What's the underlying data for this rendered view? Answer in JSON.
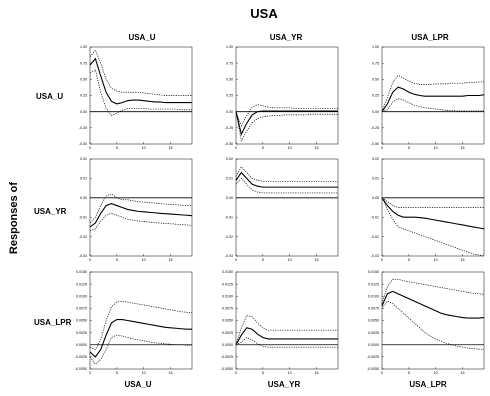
{
  "title": "USA",
  "y_axis_label": "Responses of",
  "col_titles": [
    "USA_U",
    "USA_YR",
    "USA_LPR"
  ],
  "row_labels": [
    "USA_U",
    "USA_YR",
    "USA_LPR"
  ],
  "bottom_labels": [
    "USA_U",
    "USA_YR",
    "USA_LPR"
  ],
  "chart_data": {
    "type": "line",
    "layout": "3x3 impulse-response grid",
    "x": [
      0,
      1,
      2,
      3,
      4,
      5,
      6,
      7,
      8,
      9,
      10,
      11,
      12,
      13,
      14,
      15,
      16,
      17,
      18,
      19
    ],
    "x_ticks": [
      0,
      5,
      10,
      15
    ],
    "rows": [
      {
        "ylim": [
          -0.5,
          1.0
        ],
        "y_ticks": [
          -0.5,
          -0.25,
          0.0,
          0.25,
          0.5,
          0.75,
          1.0
        ],
        "y_tick_labels": [
          "-0.50",
          "-0.25",
          "0.00",
          "0.25",
          "0.50",
          "0.75",
          "1.00"
        ],
        "cells": [
          {
            "response": [
              0.72,
              0.82,
              0.55,
              0.3,
              0.16,
              0.12,
              0.14,
              0.17,
              0.18,
              0.18,
              0.17,
              0.16,
              0.15,
              0.15,
              0.14,
              0.14,
              0.14,
              0.14,
              0.14,
              0.14
            ],
            "lower": [
              0.6,
              0.65,
              0.3,
              0.05,
              -0.06,
              -0.02,
              0.02,
              0.05,
              0.05,
              0.05,
              0.05,
              0.04,
              0.04,
              0.04,
              0.04,
              0.04,
              0.04,
              0.03,
              0.03,
              0.03
            ],
            "upper": [
              0.85,
              0.95,
              0.75,
              0.5,
              0.36,
              0.32,
              0.3,
              0.3,
              0.3,
              0.3,
              0.29,
              0.28,
              0.27,
              0.26,
              0.25,
              0.25,
              0.25,
              0.25,
              0.25,
              0.25
            ]
          },
          {
            "response": [
              0.0,
              -0.35,
              -0.18,
              -0.05,
              0.0,
              0.01,
              0.01,
              0.01,
              0.01,
              0.01,
              0.01,
              0.01,
              0.01,
              0.01,
              0.01,
              0.01,
              0.01,
              0.01,
              0.01,
              0.01
            ],
            "lower": [
              0.0,
              -0.45,
              -0.3,
              -0.17,
              -0.11,
              -0.08,
              -0.07,
              -0.06,
              -0.06,
              -0.05,
              -0.05,
              -0.05,
              -0.05,
              -0.05,
              -0.04,
              -0.04,
              -0.04,
              -0.04,
              -0.04,
              -0.04
            ],
            "upper": [
              0.0,
              -0.22,
              -0.06,
              0.07,
              0.11,
              0.09,
              0.07,
              0.06,
              0.06,
              0.06,
              0.06,
              0.05,
              0.05,
              0.05,
              0.05,
              0.05,
              0.05,
              0.05,
              0.05,
              0.05
            ]
          },
          {
            "response": [
              0.0,
              0.12,
              0.3,
              0.38,
              0.35,
              0.3,
              0.27,
              0.25,
              0.24,
              0.24,
              0.24,
              0.24,
              0.24,
              0.24,
              0.24,
              0.24,
              0.25,
              0.25,
              0.25,
              0.26
            ],
            "lower": [
              0.0,
              0.03,
              0.15,
              0.2,
              0.18,
              0.14,
              0.1,
              0.08,
              0.06,
              0.05,
              0.04,
              0.03,
              0.02,
              0.02,
              0.01,
              0.01,
              0.01,
              0.01,
              0.01,
              0.01
            ],
            "upper": [
              0.0,
              0.22,
              0.45,
              0.56,
              0.52,
              0.47,
              0.44,
              0.42,
              0.42,
              0.42,
              0.43,
              0.43,
              0.43,
              0.44,
              0.44,
              0.44,
              0.45,
              0.45,
              0.46,
              0.46
            ]
          }
        ]
      },
      {
        "ylim": [
          -0.03,
          0.02
        ],
        "y_ticks": [
          -0.03,
          -0.02,
          -0.01,
          0.0,
          0.01,
          0.02
        ],
        "y_tick_labels": [
          "-0.03",
          "-0.02",
          "-0.01",
          "0.00",
          "0.01",
          "0.02"
        ],
        "cells": [
          {
            "response": [
              -0.015,
              -0.013,
              -0.008,
              -0.004,
              -0.003,
              -0.004,
              -0.005,
              -0.006,
              -0.0065,
              -0.007,
              -0.0072,
              -0.0075,
              -0.0077,
              -0.008,
              -0.0082,
              -0.0084,
              -0.0086,
              -0.0088,
              -0.009,
              -0.0092
            ],
            "lower": [
              -0.017,
              -0.016,
              -0.012,
              -0.009,
              -0.008,
              -0.009,
              -0.01,
              -0.011,
              -0.0115,
              -0.012,
              -0.0122,
              -0.0125,
              -0.0128,
              -0.013,
              -0.0132,
              -0.0134,
              -0.0136,
              -0.0138,
              -0.014,
              -0.0142
            ],
            "upper": [
              -0.013,
              -0.01,
              -0.004,
              0.001,
              0.002,
              0.0,
              -0.001,
              -0.001,
              -0.0015,
              -0.002,
              -0.0022,
              -0.0025,
              -0.0027,
              -0.003,
              -0.0032,
              -0.0034,
              -0.0036,
              -0.0038,
              -0.004,
              -0.0042
            ]
          },
          {
            "response": [
              0.009,
              0.013,
              0.01,
              0.007,
              0.006,
              0.0055,
              0.0055,
              0.0055,
              0.0055,
              0.0055,
              0.0055,
              0.0055,
              0.0055,
              0.0055,
              0.0055,
              0.0055,
              0.0055,
              0.0055,
              0.0055,
              0.0055
            ],
            "lower": [
              0.007,
              0.01,
              0.007,
              0.004,
              0.003,
              0.0025,
              0.0025,
              0.0025,
              0.0025,
              0.0025,
              0.0025,
              0.0025,
              0.0025,
              0.0025,
              0.0025,
              0.0025,
              0.0025,
              0.0025,
              0.0025,
              0.0025
            ],
            "upper": [
              0.011,
              0.016,
              0.013,
              0.01,
              0.009,
              0.0085,
              0.0085,
              0.0085,
              0.0085,
              0.0085,
              0.0085,
              0.0085,
              0.0085,
              0.0085,
              0.0085,
              0.0085,
              0.0085,
              0.0085,
              0.0085,
              0.0085
            ]
          },
          {
            "response": [
              0.0,
              -0.004,
              -0.007,
              -0.009,
              -0.01,
              -0.01,
              -0.01,
              -0.0102,
              -0.0105,
              -0.011,
              -0.0115,
              -0.012,
              -0.0125,
              -0.013,
              -0.0135,
              -0.014,
              -0.0145,
              -0.015,
              -0.0155,
              -0.016
            ],
            "lower": [
              0.0,
              -0.006,
              -0.011,
              -0.015,
              -0.016,
              -0.017,
              -0.018,
              -0.019,
              -0.02,
              -0.021,
              -0.022,
              -0.023,
              -0.024,
              -0.025,
              -0.026,
              -0.027,
              -0.028,
              -0.029,
              -0.0295,
              -0.03
            ],
            "upper": [
              0.0,
              -0.002,
              -0.004,
              -0.005,
              -0.005,
              -0.005,
              -0.005,
              -0.005,
              -0.005,
              -0.005,
              -0.005,
              -0.005,
              -0.005,
              -0.005,
              -0.005,
              -0.005,
              -0.005,
              -0.005,
              -0.005,
              -0.005
            ]
          }
        ]
      },
      {
        "ylim": [
          -0.005,
          0.015
        ],
        "y_ticks": [
          -0.005,
          -0.0025,
          0.0,
          0.0025,
          0.005,
          0.0075,
          0.01,
          0.0125,
          0.015
        ],
        "y_tick_labels": [
          "-0.0050",
          "-0.0025",
          "0.0000",
          "0.0025",
          "0.0050",
          "0.0075",
          "0.0100",
          "0.0125",
          "0.0150"
        ],
        "cells": [
          {
            "response": [
              -0.0015,
              -0.0025,
              -0.001,
              0.002,
              0.0045,
              0.0052,
              0.0052,
              0.005,
              0.0048,
              0.0046,
              0.0044,
              0.0042,
              0.004,
              0.0038,
              0.0036,
              0.0035,
              0.0034,
              0.0033,
              0.0032,
              0.0032
            ],
            "lower": [
              -0.0025,
              -0.004,
              -0.003,
              -0.001,
              0.0015,
              0.002,
              0.0018,
              0.0015,
              0.0012,
              0.001,
              0.0008,
              0.0006,
              0.0004,
              0.0003,
              0.0002,
              0.0001,
              0.0,
              0.0,
              -0.0001,
              -0.0001
            ],
            "upper": [
              -0.0005,
              -0.001,
              0.001,
              0.005,
              0.0078,
              0.0088,
              0.009,
              0.0088,
              0.0086,
              0.0084,
              0.0082,
              0.008,
              0.0078,
              0.0076,
              0.0074,
              0.0072,
              0.007,
              0.0068,
              0.0067,
              0.0066
            ]
          },
          {
            "response": [
              0.0,
              0.002,
              0.0035,
              0.0032,
              0.0022,
              0.0015,
              0.0012,
              0.0012,
              0.0012,
              0.0012,
              0.0012,
              0.0012,
              0.0012,
              0.0012,
              0.0012,
              0.0012,
              0.0012,
              0.0012,
              0.0012,
              0.0012
            ],
            "lower": [
              0.0,
              0.0005,
              0.0015,
              0.001,
              0.0002,
              -0.0003,
              -0.0005,
              -0.0005,
              -0.0005,
              -0.0005,
              -0.0005,
              -0.0005,
              -0.0005,
              -0.0005,
              -0.0005,
              -0.0005,
              -0.0005,
              -0.0005,
              -0.0005,
              -0.0005
            ],
            "upper": [
              0.0,
              0.0035,
              0.006,
              0.0058,
              0.0045,
              0.0035,
              0.003,
              0.003,
              0.003,
              0.003,
              0.003,
              0.003,
              0.003,
              0.003,
              0.003,
              0.003,
              0.003,
              0.003,
              0.003,
              0.003
            ]
          },
          {
            "response": [
              0.008,
              0.0105,
              0.011,
              0.0105,
              0.01,
              0.0095,
              0.009,
              0.0085,
              0.008,
              0.0075,
              0.007,
              0.0065,
              0.0062,
              0.006,
              0.0058,
              0.0056,
              0.0055,
              0.0055,
              0.0055,
              0.0056
            ],
            "lower": [
              0.0075,
              0.009,
              0.0085,
              0.0075,
              0.0065,
              0.0055,
              0.0045,
              0.0035,
              0.0025,
              0.0018,
              0.0012,
              0.0007,
              0.0003,
              0.0,
              -0.0003,
              -0.0005,
              -0.0007,
              -0.0008,
              -0.0009,
              -0.001
            ],
            "upper": [
              0.0085,
              0.012,
              0.0135,
              0.0135,
              0.0132,
              0.013,
              0.0128,
              0.0126,
              0.0124,
              0.0122,
              0.012,
              0.0118,
              0.0116,
              0.0114,
              0.0112,
              0.011,
              0.0108,
              0.0106,
              0.0105,
              0.0104
            ]
          }
        ]
      }
    ]
  }
}
